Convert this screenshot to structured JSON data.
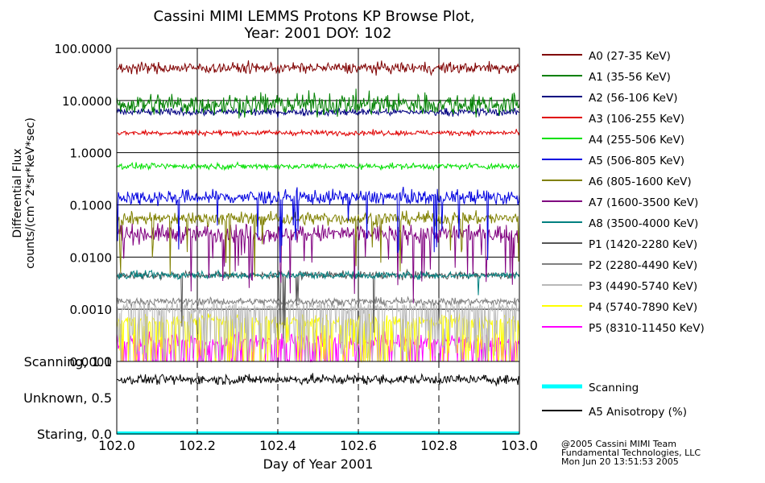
{
  "chart_data": [
    {
      "type": "line",
      "title": "Cassini MIMI LEMMS Protons KP Browse Plot,",
      "subtitle": "Year: 2001 DOY: 102",
      "xlabel": "Day of Year 2001",
      "ylabel_line1": "Differential Flux",
      "ylabel_line2": "counts/(cm^2*sr*keV*sec)",
      "yscale": "log",
      "xlim": [
        102.0,
        103.0
      ],
      "ylim": [
        0.0001,
        100.0
      ],
      "yticks": [
        {
          "value": 100,
          "label": "100.0000"
        },
        {
          "value": 10,
          "label": "10.0000"
        },
        {
          "value": 1,
          "label": "1.0000"
        },
        {
          "value": 0.1,
          "label": "0.1000"
        },
        {
          "value": 0.01,
          "label": "0.0100"
        },
        {
          "value": 0.001,
          "label": "0.0010"
        },
        {
          "value": 0.0001,
          "label": "0.0001"
        }
      ],
      "grid": true,
      "legend": "right",
      "series": [
        {
          "name": "A0 (27-35 KeV)",
          "color": "#800000",
          "level": 42,
          "spread": 0.15,
          "dips": 0
        },
        {
          "name": "A1 (35-56 KeV)",
          "color": "#008000",
          "level": 8.5,
          "spread": 0.3,
          "dips": 0
        },
        {
          "name": "A2 (56-106 KeV)",
          "color": "#000080",
          "level": 6.0,
          "spread": 0.1,
          "dips": 0
        },
        {
          "name": "A3 (106-255 KeV)",
          "color": "#e00000",
          "level": 2.4,
          "spread": 0.07,
          "dips": 0
        },
        {
          "name": "A4 (255-506 KeV)",
          "color": "#00e000",
          "level": 0.55,
          "spread": 0.08,
          "dips": 0
        },
        {
          "name": "A5 (506-805 KeV)",
          "color": "#0000e0",
          "level": 0.14,
          "spread": 0.2,
          "dips": 0.02
        },
        {
          "name": "A6 (805-1600 KeV)",
          "color": "#808000",
          "level": 0.055,
          "spread": 0.18,
          "dips": 0.03
        },
        {
          "name": "A7 (1600-3500 KeV)",
          "color": "#800080",
          "level": 0.028,
          "spread": 0.25,
          "dips": 0.06
        },
        {
          "name": "A8 (3500-4000 KeV)",
          "color": "#008080",
          "level": 0.0045,
          "spread": 0.1,
          "dips": 0.01
        },
        {
          "name": "P1 (1420-2280 KeV)",
          "color": "#555555",
          "level": 0.0045,
          "spread": 0.1,
          "dips": 0.01
        },
        {
          "name": "P2 (2280-4490 KeV)",
          "color": "#808080",
          "level": 0.0014,
          "spread": 0.1,
          "dips": 0
        },
        {
          "name": "P3 (4490-5740 KeV)",
          "color": "#b8b8b8",
          "level": 0.0011,
          "spread": 0.15,
          "dips": 0.3
        },
        {
          "name": "P4 (5740-7890 KeV)",
          "color": "#ffff00",
          "level": 0.0006,
          "spread": 0.18,
          "dips": 0.3
        },
        {
          "name": "P5 (8310-11450 KeV)",
          "color": "#ff00ff",
          "level": 0.00025,
          "spread": 0.2,
          "dips": 0.3
        }
      ]
    },
    {
      "type": "line",
      "xlabel": "Day of Year 2001",
      "xlim": [
        102.0,
        103.0
      ],
      "ylim": [
        0.0,
        1.0
      ],
      "xticks": [
        {
          "value": 102.0,
          "label": "102.0"
        },
        {
          "value": 102.2,
          "label": "102.2"
        },
        {
          "value": 102.4,
          "label": "102.4"
        },
        {
          "value": 102.6,
          "label": "102.6"
        },
        {
          "value": 102.8,
          "label": "102.8"
        },
        {
          "value": 103.0,
          "label": "103.0"
        }
      ],
      "yticks": [
        {
          "value": 1.0,
          "label": "Scanning, 1.0"
        },
        {
          "value": 0.5,
          "label": "Unknown, 0.5"
        },
        {
          "value": 0.0,
          "label": "Staring, 0.0"
        }
      ],
      "legend": "right",
      "series": [
        {
          "name": "Scanning",
          "color": "#00ffff",
          "level": 0.0
        },
        {
          "name": "A5 Anisotropy (%)",
          "color": "#000000",
          "level": 0.75,
          "spread": 0.08
        }
      ]
    }
  ],
  "footer": {
    "line1": "@2005 Cassini MIMI Team",
    "line2": "Fundamental Technologies, LLC",
    "line3": "Mon Jun 20 13:51:53 2005"
  }
}
